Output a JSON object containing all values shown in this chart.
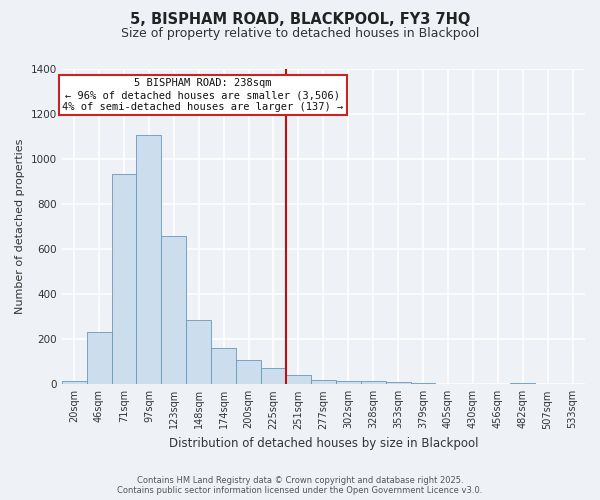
{
  "title": "5, BISPHAM ROAD, BLACKPOOL, FY3 7HQ",
  "subtitle": "Size of property relative to detached houses in Blackpool",
  "xlabel": "Distribution of detached houses by size in Blackpool",
  "ylabel": "Number of detached properties",
  "bar_labels": [
    "20sqm",
    "46sqm",
    "71sqm",
    "97sqm",
    "123sqm",
    "148sqm",
    "174sqm",
    "200sqm",
    "225sqm",
    "251sqm",
    "277sqm",
    "302sqm",
    "328sqm",
    "353sqm",
    "379sqm",
    "405sqm",
    "430sqm",
    "456sqm",
    "482sqm",
    "507sqm",
    "533sqm"
  ],
  "bar_values": [
    15,
    232,
    933,
    1107,
    657,
    285,
    160,
    107,
    72,
    42,
    20,
    15,
    15,
    10,
    5,
    0,
    0,
    0,
    5,
    0,
    3
  ],
  "bar_color": "#ccdded",
  "bar_edge_color": "#6699bb",
  "background_color": "#eef2f7",
  "grid_color": "#ffffff",
  "vline_x": 8.5,
  "vline_color": "#bb1111",
  "annotation_title": "5 BISPHAM ROAD: 238sqm",
  "annotation_line1": "← 96% of detached houses are smaller (3,506)",
  "annotation_line2": "4% of semi-detached houses are larger (137) →",
  "annotation_box_facecolor": "#ffffff",
  "annotation_box_edgecolor": "#cc2222",
  "ylim": [
    0,
    1400
  ],
  "yticks": [
    0,
    200,
    400,
    600,
    800,
    1000,
    1200,
    1400
  ],
  "footer1": "Contains HM Land Registry data © Crown copyright and database right 2025.",
  "footer2": "Contains public sector information licensed under the Open Government Licence v3.0.",
  "title_fontsize": 10.5,
  "subtitle_fontsize": 9,
  "tick_fontsize": 7,
  "ylabel_fontsize": 8,
  "xlabel_fontsize": 8.5
}
